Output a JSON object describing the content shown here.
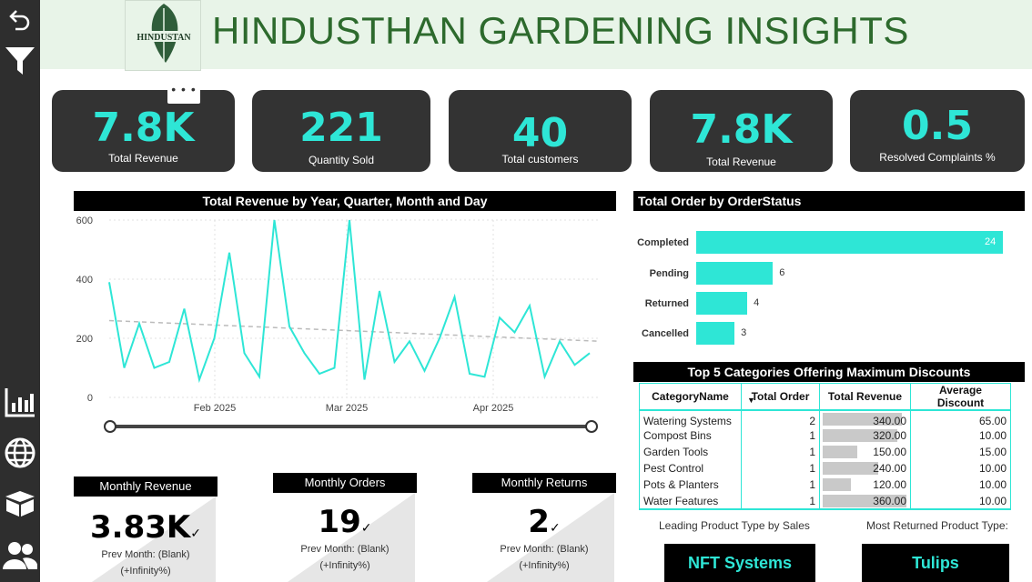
{
  "header": {
    "title": "HINDUSTHAN GARDENING INSIGHTS",
    "logo_text": "HINDUSTAN"
  },
  "sidebar": {
    "icons": [
      "back-icon",
      "filter-icon",
      "bar-chart-icon",
      "globe-icon",
      "box-icon",
      "users-icon"
    ]
  },
  "kpis": [
    {
      "value": "7.8K",
      "label": "Total Revenue"
    },
    {
      "value": "221",
      "label": "Quantity Sold"
    },
    {
      "value": "40",
      "label": "Total customers"
    },
    {
      "value": "7.8K",
      "label": "Total Revenue"
    },
    {
      "value": "0.5",
      "label": "Resolved Complaints %"
    }
  ],
  "more_options": "• • •",
  "colors": {
    "accent": "#2ee6d6",
    "dark": "#333333",
    "header_bg": "#e8f4e8",
    "title": "#2d6a2d"
  },
  "chart_data": [
    {
      "type": "line",
      "title": "Total Revenue by Year, Quarter, Month and Day",
      "xlabel": "",
      "ylabel": "",
      "x_ticks": [
        "Feb 2025",
        "Mar 2025",
        "Apr 2025"
      ],
      "y_ticks": [
        "600",
        "400",
        "200",
        "0"
      ],
      "ylim": [
        0,
        600
      ],
      "grid": true,
      "trend_line": [
        260,
        190
      ],
      "series": [
        {
          "values": [
            390,
            100,
            250,
            100,
            120,
            300,
            60,
            200,
            490,
            150,
            70,
            600,
            240,
            150,
            80,
            100,
            600,
            60,
            360,
            120,
            190,
            90,
            200,
            340,
            80,
            70,
            270,
            220,
            310,
            70,
            190,
            110,
            150
          ]
        }
      ]
    },
    {
      "type": "bar",
      "title": "Total Order by OrderStatus",
      "categories": [
        "Completed",
        "Pending",
        "Returned",
        "Cancelled"
      ],
      "values": [
        24,
        6,
        4,
        3
      ],
      "orientation": "horizontal"
    }
  ],
  "discounts": {
    "title": "Top 5 Categories Offering Maximum Discounts",
    "columns": [
      "CategoryName",
      "Total Order",
      "Total Revenue",
      "Average Discount"
    ],
    "rows": [
      {
        "name": "Watering Systems",
        "orders": "2",
        "revenue": "340.00",
        "rev_value": 340,
        "discount": "65.00"
      },
      {
        "name": "Compost Bins",
        "orders": "1",
        "revenue": "320.00",
        "rev_value": 320,
        "discount": "10.00"
      },
      {
        "name": "Garden Tools",
        "orders": "1",
        "revenue": "150.00",
        "rev_value": 150,
        "discount": "15.00"
      },
      {
        "name": "Pest Control",
        "orders": "1",
        "revenue": "240.00",
        "rev_value": 240,
        "discount": "10.00"
      },
      {
        "name": "Pots & Planters",
        "orders": "1",
        "revenue": "120.00",
        "rev_value": 120,
        "discount": "10.00"
      },
      {
        "name": "Water Features",
        "orders": "1",
        "revenue": "360.00",
        "rev_value": 360,
        "discount": "10.00"
      }
    ]
  },
  "cards": [
    {
      "title": "Monthly Revenue",
      "value": "3.83K",
      "prev": "Prev Month: (Blank)",
      "change": "(+Infinity%)"
    },
    {
      "title": "Monthly Orders",
      "value": "19",
      "prev": "Prev Month: (Blank)",
      "change": "(+Infinity%)"
    },
    {
      "title": "Monthly Returns",
      "value": "2",
      "prev": "Prev Month: (Blank)",
      "change": "(+Infinity%)"
    }
  ],
  "products": {
    "leading_label": "Leading Product Type by Sales",
    "leading_value": "NFT Systems",
    "returned_label": "Most Returned Product Type:",
    "returned_value": "Tulips"
  }
}
